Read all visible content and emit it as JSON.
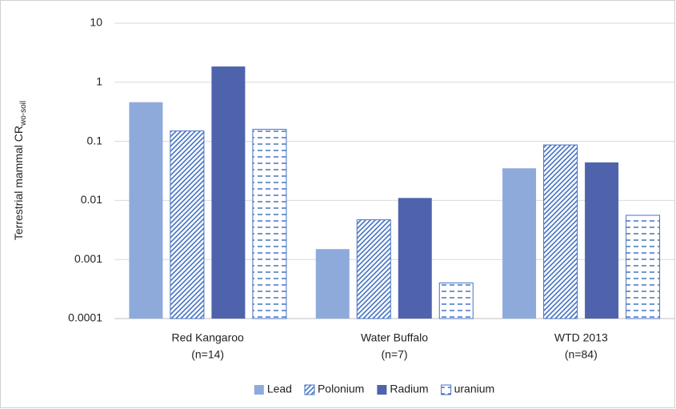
{
  "chart_data": {
    "type": "bar",
    "y_label": "Terrestrial mammal CR",
    "y_label_sub": "wo-soil",
    "log_scale": true,
    "grid": true,
    "legend": "bottom",
    "categories": [
      [
        "Red Kangaroo",
        "(n=14)"
      ],
      [
        "Water Buffalo",
        "(n=7)"
      ],
      [
        "WTD 2013",
        "(n=84)"
      ]
    ],
    "series": [
      {
        "name": "Lead",
        "color": "#8eaadb",
        "pattern": "solid",
        "values": [
          0.46,
          0.0015,
          0.035
        ]
      },
      {
        "name": "Polonium",
        "color": "#4472c4",
        "pattern": "diagonal",
        "values": [
          0.15,
          0.0047,
          0.087
        ]
      },
      {
        "name": "Radium",
        "color": "#4f63ad",
        "pattern": "solid",
        "values": [
          1.85,
          0.011,
          0.044
        ]
      },
      {
        "name": "uranium",
        "color": "#4472c4",
        "pattern": "dashes",
        "values": [
          0.16,
          0.0004,
          0.0056
        ]
      }
    ],
    "ylim": [
      0.0001,
      10
    ],
    "yticks": [
      0.0001,
      0.001,
      0.01,
      0.1,
      1,
      10
    ]
  }
}
